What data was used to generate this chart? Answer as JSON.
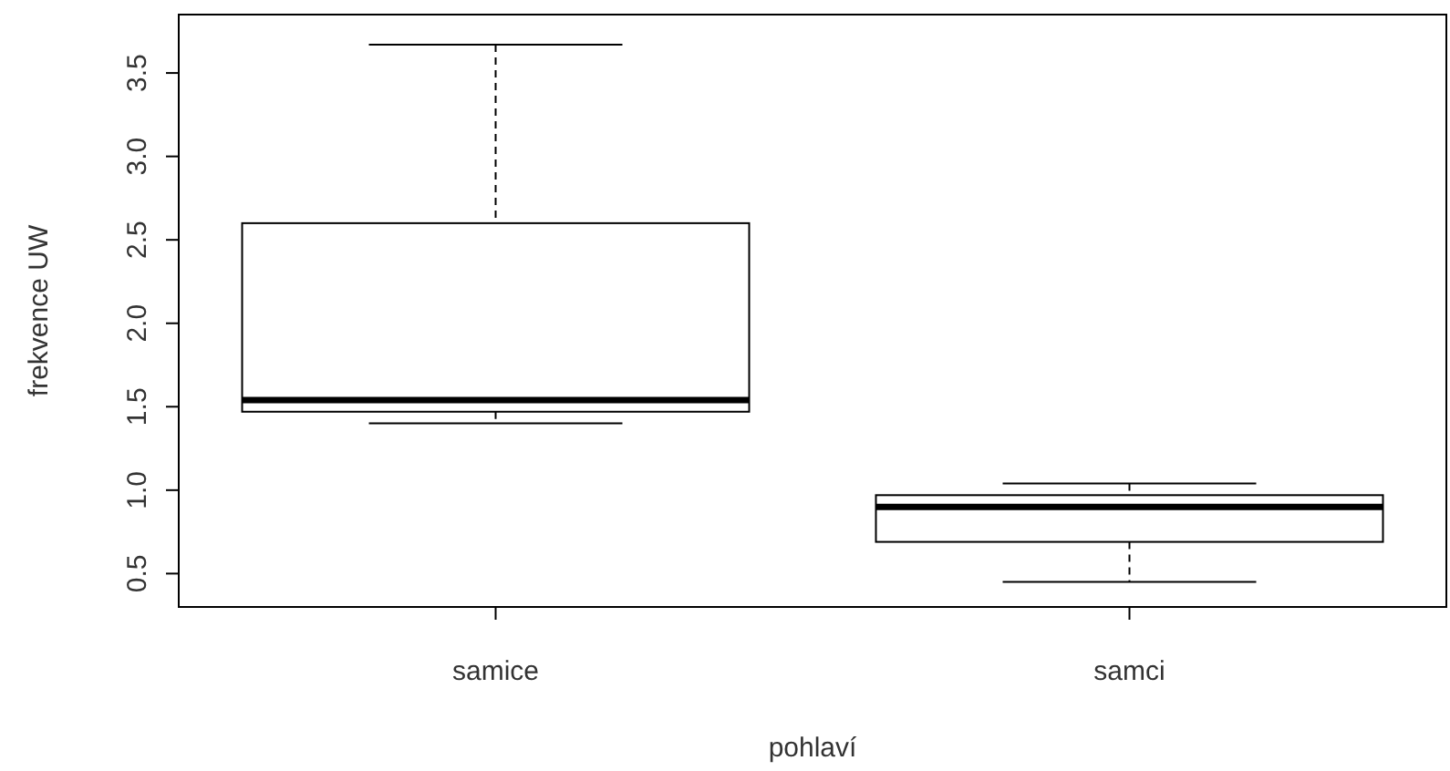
{
  "chart_data": {
    "type": "box",
    "xlabel": "pohlaví",
    "ylabel": "frekvence UW",
    "categories": [
      "samice",
      "samci"
    ],
    "boxes": [
      {
        "low": 1.4,
        "q1": 1.47,
        "median": 1.54,
        "q3": 2.6,
        "high": 3.67
      },
      {
        "low": 0.45,
        "q1": 0.69,
        "median": 0.9,
        "q3": 0.97,
        "high": 1.04
      }
    ],
    "ylim": [
      0.3,
      3.85
    ],
    "yticks": [
      {
        "value": 0.5,
        "label": "0.5"
      },
      {
        "value": 1,
        "label": "1.0"
      },
      {
        "value": 1.5,
        "label": "1.5"
      },
      {
        "value": 2,
        "label": "2.0"
      },
      {
        "value": 2.5,
        "label": "2.5"
      },
      {
        "value": 3,
        "label": "3.0"
      },
      {
        "value": 3.5,
        "label": "3.5"
      }
    ],
    "grid": false,
    "color": "#000000"
  }
}
